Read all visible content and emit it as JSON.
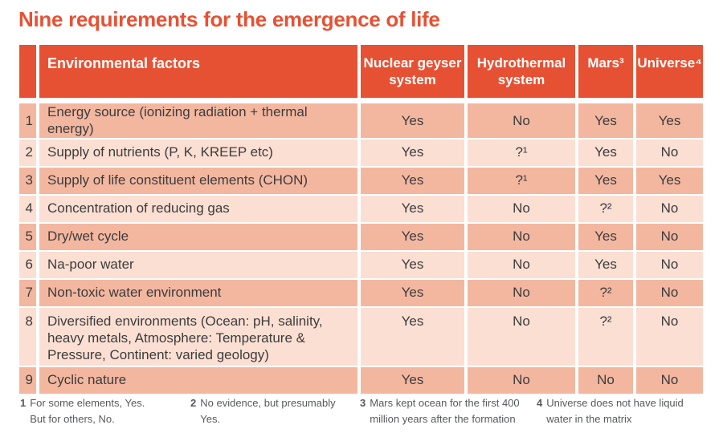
{
  "title": "Nine requirements for the emergence of life",
  "colors": {
    "accent": "#E75133",
    "row_dark": "#F3B7A0",
    "row_light": "#FBDFD3",
    "header_text": "#FFFFFF",
    "body_text": "#3C3C3C",
    "footnote_text": "#58595B"
  },
  "chart_data": {
    "type": "table",
    "title": "Nine requirements for the emergence of life",
    "header": {
      "factors": "Environmental factors",
      "systems": [
        "Nuclear geyser system",
        "Hydrothermal system",
        "Mars³",
        "Universe⁴"
      ]
    },
    "rows": [
      {
        "num": "1",
        "factor": "Energy source (ionizing radiation + thermal energy)",
        "values": [
          "Yes",
          "No",
          "Yes",
          "Yes"
        ]
      },
      {
        "num": "2",
        "factor": "Supply of nutrients (P, K, KREEP etc)",
        "values": [
          "Yes",
          "?¹",
          "Yes",
          "No"
        ]
      },
      {
        "num": "3",
        "factor": "Supply of life constituent elements (CHON)",
        "values": [
          "Yes",
          "?¹",
          "Yes",
          "Yes"
        ]
      },
      {
        "num": "4",
        "factor": "Concentration of reducing gas",
        "values": [
          "Yes",
          "No",
          "?²",
          "No"
        ]
      },
      {
        "num": "5",
        "factor": "Dry/wet cycle",
        "values": [
          "Yes",
          "No",
          "Yes",
          "No"
        ]
      },
      {
        "num": "6",
        "factor": "Na-poor water",
        "values": [
          "Yes",
          "No",
          "Yes",
          "No"
        ]
      },
      {
        "num": "7",
        "factor": "Non-toxic water environment",
        "values": [
          "Yes",
          "No",
          "?²",
          "No"
        ]
      },
      {
        "num": "8",
        "factor": "Diversified environments (Ocean: pH, salinity, heavy metals, Atmosphere: Temperature & Pressure, Continent: varied geology)",
        "values": [
          "Yes",
          "No",
          "?²",
          "No"
        ]
      },
      {
        "num": "9",
        "factor": "Cyclic nature",
        "values": [
          "Yes",
          "No",
          "No",
          "No"
        ]
      }
    ],
    "footnotes": [
      {
        "num": "1",
        "text": "For some elements, Yes. But for others, No."
      },
      {
        "num": "2",
        "text": "No evidence, but presumably Yes."
      },
      {
        "num": "3",
        "text": "Mars kept ocean for the first 400 million years after the formation"
      },
      {
        "num": "4",
        "text": "Universe does not have liquid water in the matrix"
      }
    ]
  }
}
